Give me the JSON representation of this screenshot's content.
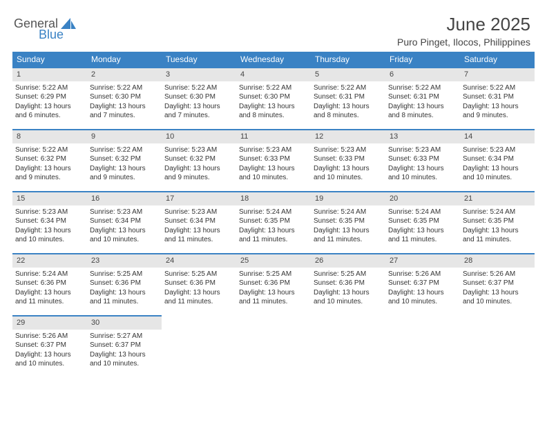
{
  "logo": {
    "word1": "General",
    "word2": "Blue",
    "shape_color": "#3a82c4"
  },
  "header": {
    "title": "June 2025",
    "location": "Puro Pinget, Ilocos, Philippines",
    "title_color": "#444444",
    "title_fontsize": 26,
    "subtitle_fontsize": 14
  },
  "calendar": {
    "type": "table",
    "accent_color": "#3a82c4",
    "strip_bg": "#e6e6e6",
    "background_color": "#ffffff",
    "columns": [
      "Sunday",
      "Monday",
      "Tuesday",
      "Wednesday",
      "Thursday",
      "Friday",
      "Saturday"
    ],
    "header_fontsize": 12,
    "cell_fontsize": 10,
    "weeks": [
      [
        {
          "num": "1",
          "sunrise": "Sunrise: 5:22 AM",
          "sunset": "Sunset: 6:29 PM",
          "daylight": "Daylight: 13 hours and 6 minutes."
        },
        {
          "num": "2",
          "sunrise": "Sunrise: 5:22 AM",
          "sunset": "Sunset: 6:30 PM",
          "daylight": "Daylight: 13 hours and 7 minutes."
        },
        {
          "num": "3",
          "sunrise": "Sunrise: 5:22 AM",
          "sunset": "Sunset: 6:30 PM",
          "daylight": "Daylight: 13 hours and 7 minutes."
        },
        {
          "num": "4",
          "sunrise": "Sunrise: 5:22 AM",
          "sunset": "Sunset: 6:30 PM",
          "daylight": "Daylight: 13 hours and 8 minutes."
        },
        {
          "num": "5",
          "sunrise": "Sunrise: 5:22 AM",
          "sunset": "Sunset: 6:31 PM",
          "daylight": "Daylight: 13 hours and 8 minutes."
        },
        {
          "num": "6",
          "sunrise": "Sunrise: 5:22 AM",
          "sunset": "Sunset: 6:31 PM",
          "daylight": "Daylight: 13 hours and 8 minutes."
        },
        {
          "num": "7",
          "sunrise": "Sunrise: 5:22 AM",
          "sunset": "Sunset: 6:31 PM",
          "daylight": "Daylight: 13 hours and 9 minutes."
        }
      ],
      [
        {
          "num": "8",
          "sunrise": "Sunrise: 5:22 AM",
          "sunset": "Sunset: 6:32 PM",
          "daylight": "Daylight: 13 hours and 9 minutes."
        },
        {
          "num": "9",
          "sunrise": "Sunrise: 5:22 AM",
          "sunset": "Sunset: 6:32 PM",
          "daylight": "Daylight: 13 hours and 9 minutes."
        },
        {
          "num": "10",
          "sunrise": "Sunrise: 5:23 AM",
          "sunset": "Sunset: 6:32 PM",
          "daylight": "Daylight: 13 hours and 9 minutes."
        },
        {
          "num": "11",
          "sunrise": "Sunrise: 5:23 AM",
          "sunset": "Sunset: 6:33 PM",
          "daylight": "Daylight: 13 hours and 10 minutes."
        },
        {
          "num": "12",
          "sunrise": "Sunrise: 5:23 AM",
          "sunset": "Sunset: 6:33 PM",
          "daylight": "Daylight: 13 hours and 10 minutes."
        },
        {
          "num": "13",
          "sunrise": "Sunrise: 5:23 AM",
          "sunset": "Sunset: 6:33 PM",
          "daylight": "Daylight: 13 hours and 10 minutes."
        },
        {
          "num": "14",
          "sunrise": "Sunrise: 5:23 AM",
          "sunset": "Sunset: 6:34 PM",
          "daylight": "Daylight: 13 hours and 10 minutes."
        }
      ],
      [
        {
          "num": "15",
          "sunrise": "Sunrise: 5:23 AM",
          "sunset": "Sunset: 6:34 PM",
          "daylight": "Daylight: 13 hours and 10 minutes."
        },
        {
          "num": "16",
          "sunrise": "Sunrise: 5:23 AM",
          "sunset": "Sunset: 6:34 PM",
          "daylight": "Daylight: 13 hours and 10 minutes."
        },
        {
          "num": "17",
          "sunrise": "Sunrise: 5:23 AM",
          "sunset": "Sunset: 6:34 PM",
          "daylight": "Daylight: 13 hours and 11 minutes."
        },
        {
          "num": "18",
          "sunrise": "Sunrise: 5:24 AM",
          "sunset": "Sunset: 6:35 PM",
          "daylight": "Daylight: 13 hours and 11 minutes."
        },
        {
          "num": "19",
          "sunrise": "Sunrise: 5:24 AM",
          "sunset": "Sunset: 6:35 PM",
          "daylight": "Daylight: 13 hours and 11 minutes."
        },
        {
          "num": "20",
          "sunrise": "Sunrise: 5:24 AM",
          "sunset": "Sunset: 6:35 PM",
          "daylight": "Daylight: 13 hours and 11 minutes."
        },
        {
          "num": "21",
          "sunrise": "Sunrise: 5:24 AM",
          "sunset": "Sunset: 6:35 PM",
          "daylight": "Daylight: 13 hours and 11 minutes."
        }
      ],
      [
        {
          "num": "22",
          "sunrise": "Sunrise: 5:24 AM",
          "sunset": "Sunset: 6:36 PM",
          "daylight": "Daylight: 13 hours and 11 minutes."
        },
        {
          "num": "23",
          "sunrise": "Sunrise: 5:25 AM",
          "sunset": "Sunset: 6:36 PM",
          "daylight": "Daylight: 13 hours and 11 minutes."
        },
        {
          "num": "24",
          "sunrise": "Sunrise: 5:25 AM",
          "sunset": "Sunset: 6:36 PM",
          "daylight": "Daylight: 13 hours and 11 minutes."
        },
        {
          "num": "25",
          "sunrise": "Sunrise: 5:25 AM",
          "sunset": "Sunset: 6:36 PM",
          "daylight": "Daylight: 13 hours and 11 minutes."
        },
        {
          "num": "26",
          "sunrise": "Sunrise: 5:25 AM",
          "sunset": "Sunset: 6:36 PM",
          "daylight": "Daylight: 13 hours and 10 minutes."
        },
        {
          "num": "27",
          "sunrise": "Sunrise: 5:26 AM",
          "sunset": "Sunset: 6:37 PM",
          "daylight": "Daylight: 13 hours and 10 minutes."
        },
        {
          "num": "28",
          "sunrise": "Sunrise: 5:26 AM",
          "sunset": "Sunset: 6:37 PM",
          "daylight": "Daylight: 13 hours and 10 minutes."
        }
      ],
      [
        {
          "num": "29",
          "sunrise": "Sunrise: 5:26 AM",
          "sunset": "Sunset: 6:37 PM",
          "daylight": "Daylight: 13 hours and 10 minutes."
        },
        {
          "num": "30",
          "sunrise": "Sunrise: 5:27 AM",
          "sunset": "Sunset: 6:37 PM",
          "daylight": "Daylight: 13 hours and 10 minutes."
        },
        null,
        null,
        null,
        null,
        null
      ]
    ]
  }
}
